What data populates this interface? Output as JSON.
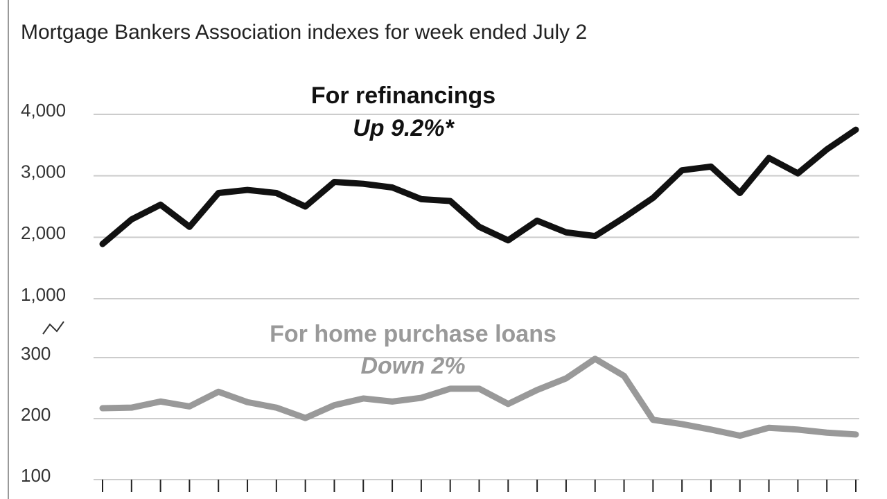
{
  "chart_data": [
    {
      "type": "line",
      "subtitle": "Mortgage Bankers Association indexes for week ended July 2",
      "annotation": "Up 9.2%*",
      "categories": [
        null,
        null,
        null,
        null,
        null,
        null,
        null,
        null,
        null,
        null,
        null,
        null,
        null,
        null,
        null,
        null,
        null,
        null,
        null,
        null,
        null,
        null,
        null,
        null,
        null,
        null,
        null
      ],
      "series": [
        {
          "name": "For refinancings",
          "color": "#111111",
          "values": [
            1890,
            2290,
            2530,
            2170,
            2720,
            2770,
            2720,
            2500,
            2900,
            2870,
            2810,
            2620,
            2590,
            2170,
            1950,
            2270,
            2080,
            2020,
            2320,
            2640,
            3090,
            3150,
            2720,
            3290,
            3040,
            3430,
            3750
          ]
        }
      ],
      "ylim": [
        1000,
        4000
      ],
      "yticks": [
        {
          "value": 1000,
          "label": "1,000"
        },
        {
          "value": 2000,
          "label": "2,000"
        },
        {
          "value": 3000,
          "label": "3,000"
        },
        {
          "value": 4000,
          "label": "4,000"
        }
      ],
      "grid": true
    },
    {
      "type": "line",
      "annotation": "Down 2%",
      "categories": [
        null,
        null,
        null,
        null,
        null,
        null,
        null,
        null,
        null,
        null,
        null,
        null,
        null,
        null,
        null,
        null,
        null,
        null,
        null,
        null,
        null,
        null,
        null,
        null,
        null,
        null,
        null
      ],
      "series": [
        {
          "name": "For home purchase loans",
          "color": "#999999",
          "values": [
            217,
            218,
            228,
            220,
            244,
            227,
            218,
            201,
            222,
            233,
            228,
            234,
            249,
            249,
            224,
            247,
            266,
            298,
            270,
            198,
            191,
            182,
            172,
            185,
            182,
            177,
            174
          ]
        }
      ],
      "ylim": [
        100,
        300
      ],
      "yticks": [
        100,
        200,
        300
      ],
      "grid": true
    }
  ]
}
